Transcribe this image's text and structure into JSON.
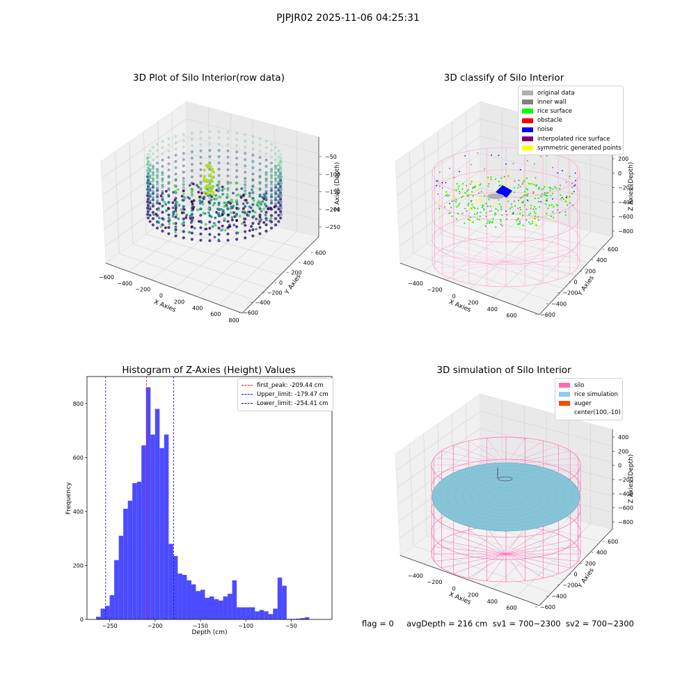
{
  "suptitle": "PJPJR02 2025-11-06 04:25:31",
  "panels": {
    "raw": {
      "title": "3D Plot of Silo Interior(row data)",
      "xlabel": "X Axies",
      "ylabel": "Y Axies",
      "zlabel": "Z Axies (Depth)",
      "xticks": [
        "−600",
        "−400",
        "−200",
        "0",
        "200",
        "400",
        "600",
        "800"
      ],
      "yticks": [
        "600",
        "400",
        "200",
        "0",
        "−200",
        "−400",
        "−600"
      ],
      "zticks": [
        "−50",
        "−100",
        "−150",
        "−200",
        "−250"
      ]
    },
    "classify": {
      "title": "3D classify of Silo Interior",
      "xlabel": "X Axies",
      "ylabel": "Y Axies",
      "zlabel": "Z Axies (Depth)",
      "xticks": [
        "−400",
        "−200",
        "0",
        "200",
        "400",
        "600"
      ],
      "yticks": [
        "600",
        "400",
        "200",
        "0",
        "−200",
        "−400",
        "−600"
      ],
      "zticks": [
        "200",
        "0",
        "−200",
        "−400",
        "−600",
        "−800"
      ],
      "zticks_partial": "00",
      "zticks_top": "200"
    },
    "simulation": {
      "title": "3D simulation of Silo Interior",
      "xlabel": "X Axies",
      "ylabel": "Y Axies",
      "zlabel": "Z Axies (Depth)",
      "xticks": [
        "−400",
        "−200",
        "0",
        "200",
        "400",
        "600"
      ],
      "yticks": [
        "600",
        "400",
        "200",
        "0",
        "−200",
        "−400",
        "−600"
      ],
      "zticks": [
        "400",
        "200",
        "0",
        "−200",
        "−400",
        "−600",
        "−800"
      ]
    }
  },
  "legends": {
    "classify": [
      {
        "label": "original data",
        "color": "#b0b0b0"
      },
      {
        "label": "inner wall",
        "color": "#808080"
      },
      {
        "label": "rice surface",
        "color": "#00ff00"
      },
      {
        "label": "obstacle",
        "color": "#ff0000"
      },
      {
        "label": "noise",
        "color": "#0000ff"
      },
      {
        "label": "interpolated rice surface",
        "color": "#800080"
      },
      {
        "label": "symmetric generated points",
        "color": "#ffff00"
      }
    ],
    "simulation": [
      {
        "label": "silo",
        "color": "#ff69b4"
      },
      {
        "label": "rice simulation",
        "color": "#87ceeb"
      },
      {
        "label": "auger",
        "color": "#ff4500"
      },
      {
        "label": "center(100,-10)",
        "color": ""
      }
    ]
  },
  "chart_data": [
    {
      "type": "scatter",
      "subtype": "3d",
      "title": "3D Plot of Silo Interior(row data)",
      "xlabel": "X Axies",
      "ylabel": "Y Axies",
      "zlabel": "Z Axies (Depth)",
      "xlim": [
        -600,
        800
      ],
      "ylim": [
        -600,
        600
      ],
      "zlim": [
        -275,
        -25
      ],
      "colormap": "viridis",
      "grid": true
    },
    {
      "type": "scatter",
      "subtype": "3d",
      "title": "3D classify of Silo Interior",
      "xlabel": "X Axies",
      "ylabel": "Y Axies",
      "zlabel": "Z Axies (Depth)",
      "xlim": [
        -500,
        700
      ],
      "ylim": [
        -600,
        600
      ],
      "zlim": [
        -900,
        300
      ],
      "legend_position": "upper right",
      "grid": true
    },
    {
      "type": "bar",
      "subtype": "histogram",
      "title": "Histogram of Z-Axies (Height) Values",
      "xlabel": "Depth (cm)",
      "ylabel": "Frequency",
      "xlim": [
        -275,
        -5
      ],
      "ylim": [
        0,
        900
      ],
      "xticks": [
        -250,
        -200,
        -150,
        -100,
        -50
      ],
      "yticks": [
        0,
        200,
        400,
        600,
        800
      ],
      "bar_color": "#4b4bff",
      "bin_width": 5,
      "bin_start": -265,
      "values": [
        10,
        40,
        50,
        90,
        220,
        310,
        410,
        440,
        505,
        510,
        645,
        860,
        685,
        780,
        635,
        685,
        280,
        235,
        170,
        165,
        145,
        130,
        105,
        110,
        80,
        85,
        75,
        70,
        85,
        95,
        145,
        45,
        45,
        45,
        45,
        30,
        35,
        30,
        20,
        40,
        155,
        125,
        2,
        2,
        3,
        5,
        8
      ],
      "vlines": [
        {
          "label": "first_peak: -209.44 cm",
          "x": -209.44,
          "color": "#ff0000"
        },
        {
          "label": "Upper_limit: -179.47 cm",
          "x": -179.47,
          "color": "#0000ff"
        },
        {
          "label": "Lower_limit: -254.41 cm",
          "x": -254.41,
          "color": "#0000ff"
        }
      ],
      "legend_position": "upper right",
      "grid": false
    },
    {
      "type": "surface",
      "subtype": "3d",
      "title": "3D simulation of Silo Interior",
      "xlabel": "X Axies",
      "ylabel": "Y Axies",
      "zlabel": "Z Axies (Depth)",
      "xlim": [
        -500,
        700
      ],
      "ylim": [
        -600,
        600
      ],
      "zlim": [
        -900,
        450
      ],
      "legend_position": "upper right",
      "grid": true
    }
  ],
  "histogram_title": "Histogram of Z-Axies (Height) Values",
  "histogram_labels": {
    "x": "Depth (cm)",
    "y": "Frequency"
  },
  "footer": "flag = 0     avgDepth = 216 cm  sv1 = 700~2300  sv2 = 700~2300"
}
